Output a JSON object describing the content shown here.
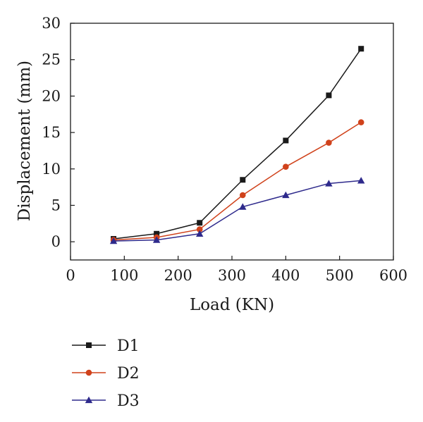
{
  "chart_data": {
    "type": "line",
    "title": "",
    "xlabel": "Load (KN)",
    "ylabel": "Displacement (mm)",
    "xlim": [
      0,
      600
    ],
    "ylim": [
      -2.5,
      30
    ],
    "xticks": [
      0,
      100,
      200,
      300,
      400,
      500,
      600
    ],
    "yticks": [
      0,
      5,
      10,
      15,
      20,
      25,
      30
    ],
    "grid": false,
    "legend_position": "bottom-left, below plot",
    "x": [
      80,
      160,
      240,
      320,
      400,
      480,
      540
    ],
    "series": [
      {
        "name": "D1",
        "marker": "square",
        "color": "#1a1a1a",
        "values": [
          0.4,
          1.1,
          2.6,
          8.5,
          13.9,
          20.1,
          26.5
        ]
      },
      {
        "name": "D2",
        "marker": "circle",
        "color": "#d0421b",
        "values": [
          0.25,
          0.6,
          1.7,
          6.4,
          10.3,
          13.6,
          16.4
        ]
      },
      {
        "name": "D3",
        "marker": "triangle",
        "color": "#2e2a8c",
        "values": [
          0.1,
          0.25,
          1.1,
          4.8,
          6.4,
          8.0,
          8.4
        ]
      }
    ]
  }
}
